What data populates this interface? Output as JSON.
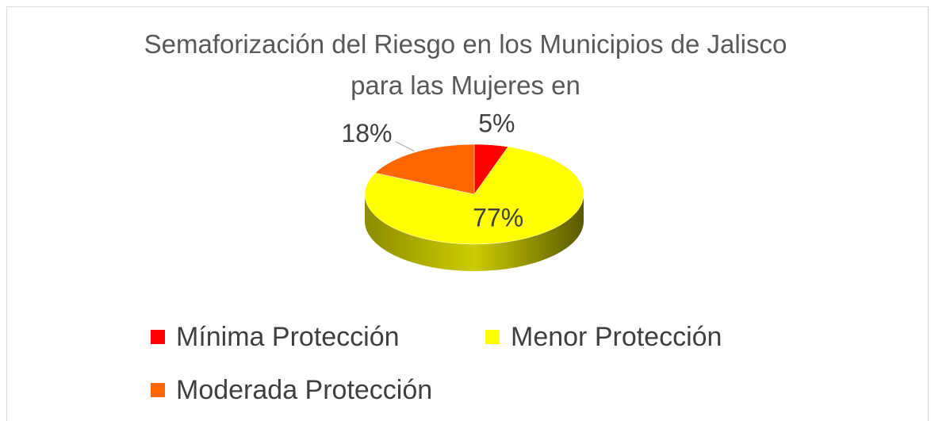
{
  "chart_data": {
    "type": "pie",
    "title": "Semaforización del Riesgo en los Municipios de Jalisco para las Mujeres en",
    "categories": [
      "Mínima Protección",
      "Menor Protección",
      "Moderada Protección"
    ],
    "values": [
      5,
      77,
      18
    ],
    "value_labels": [
      "5%",
      "77%",
      "18%"
    ],
    "colors": [
      "#ff0000",
      "#ffff00",
      "#ff6600"
    ],
    "legend": "bottom"
  }
}
